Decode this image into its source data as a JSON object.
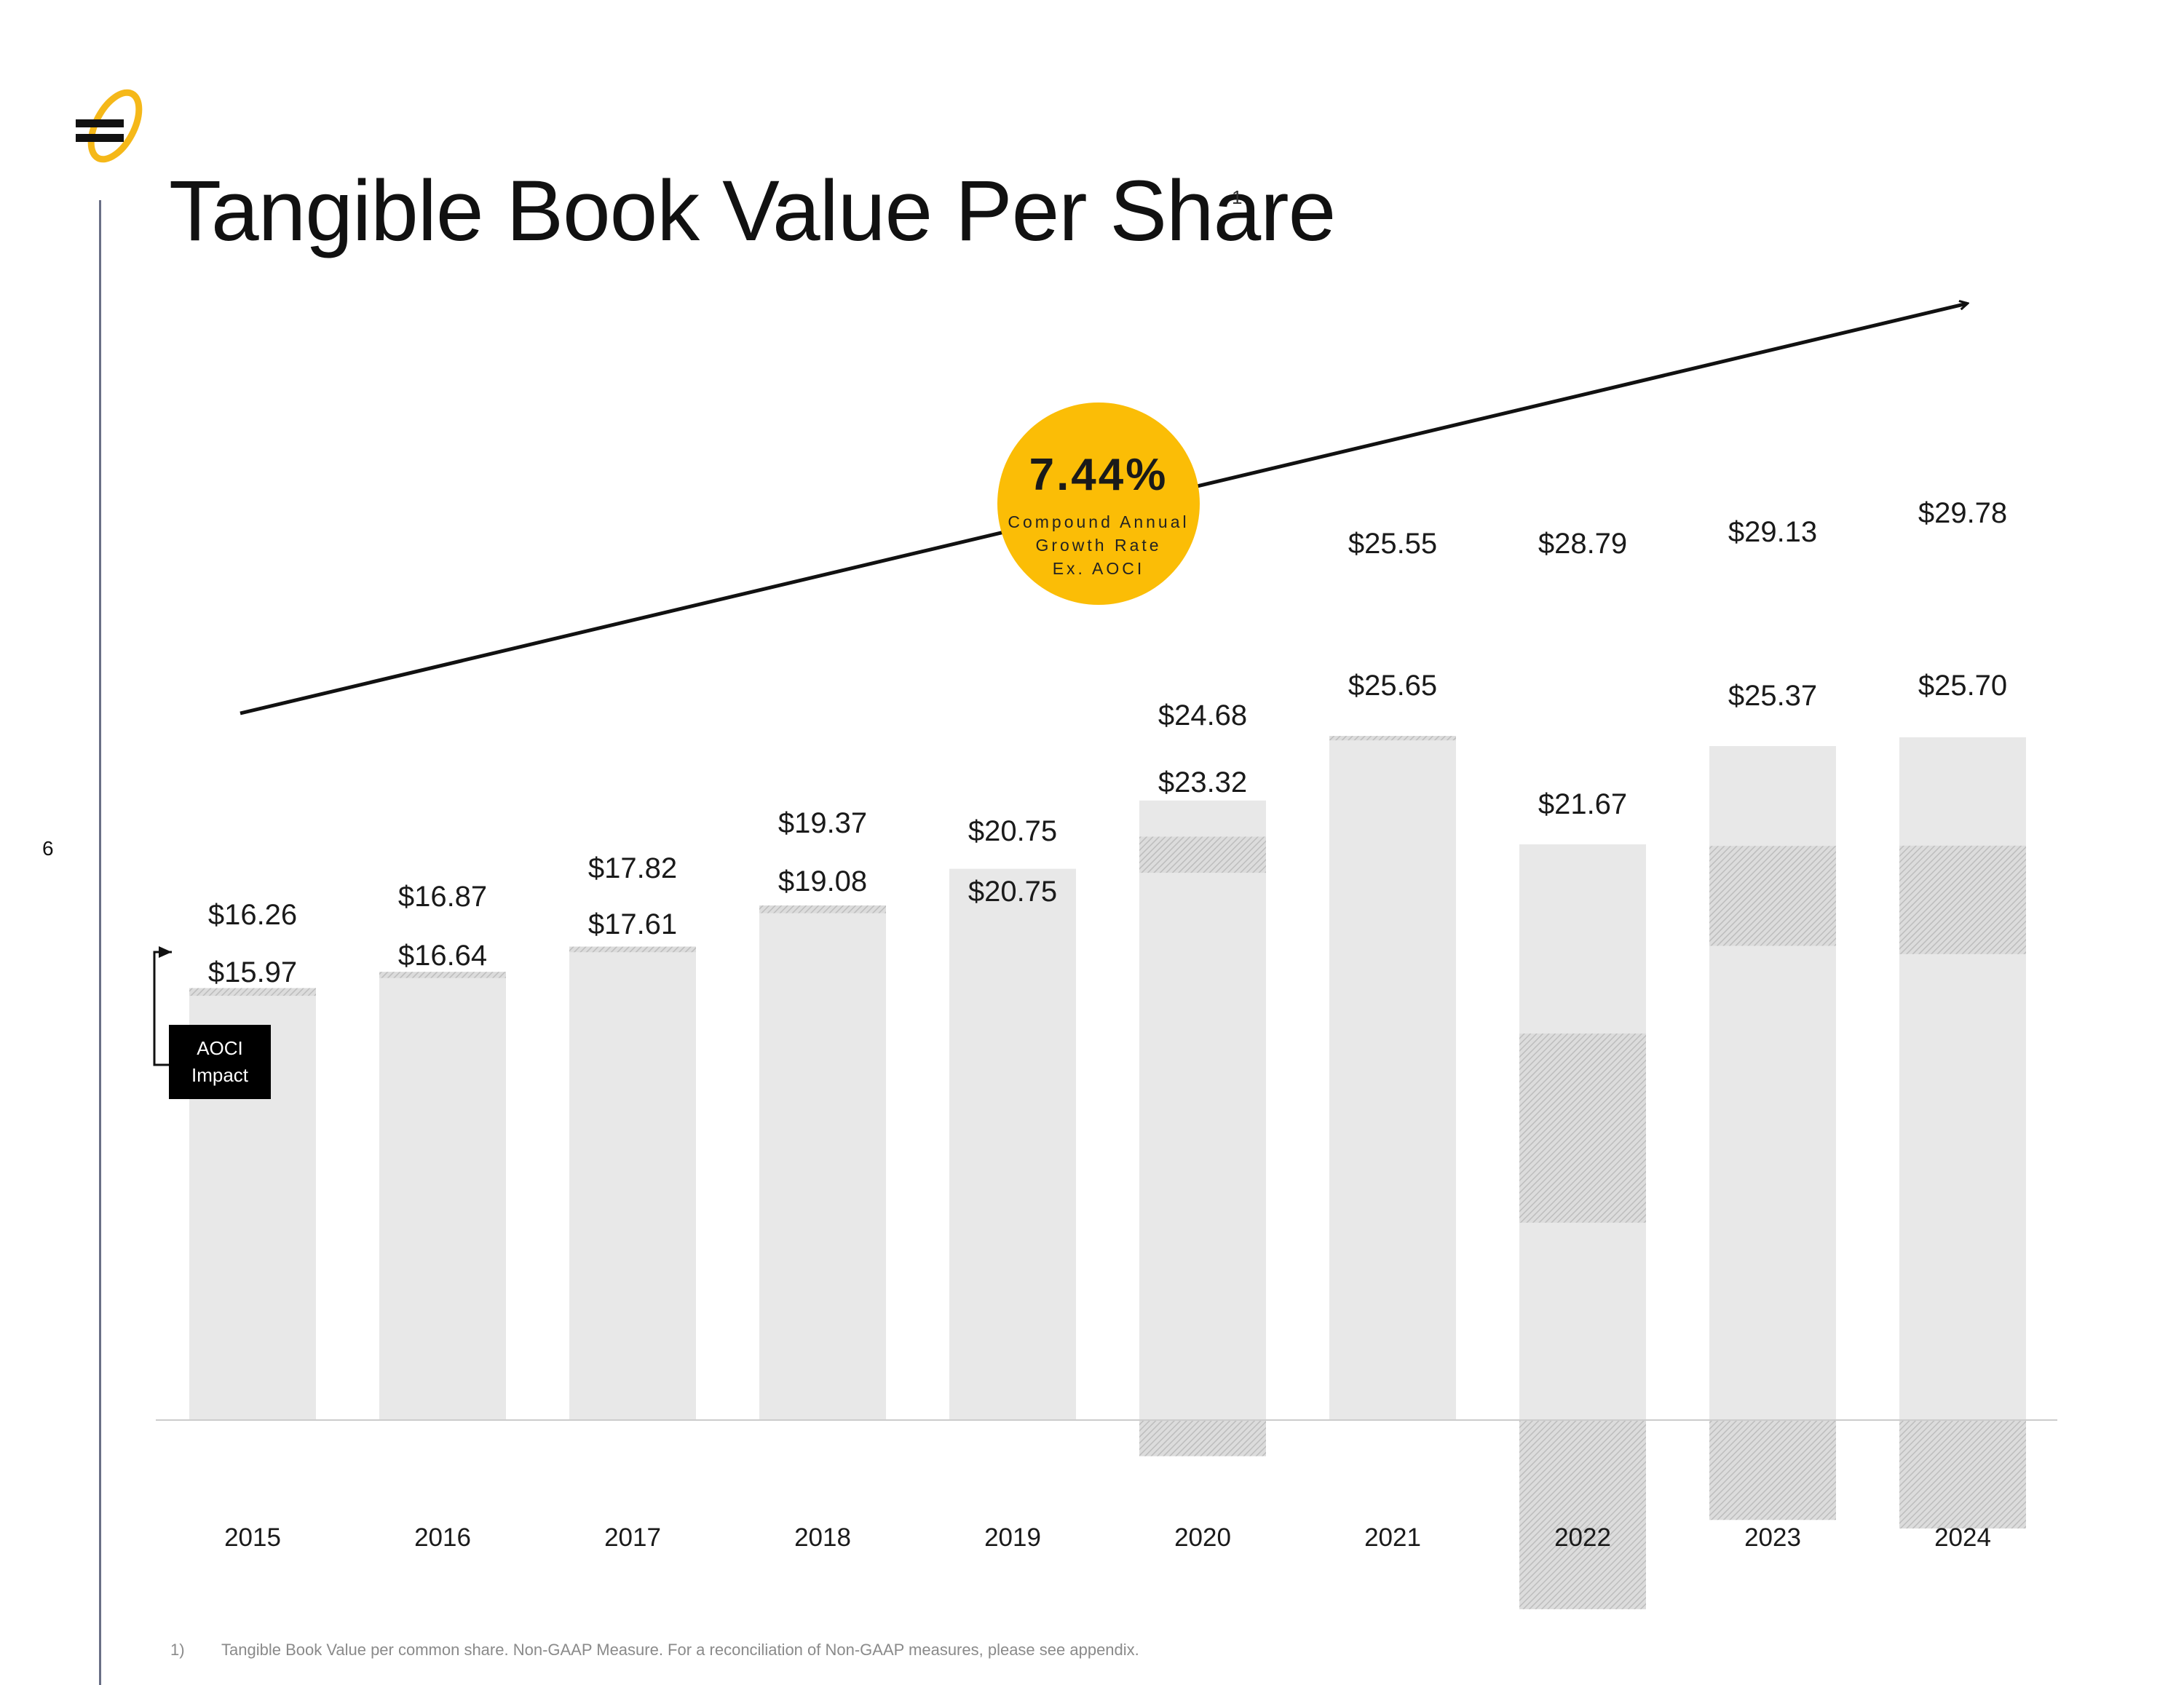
{
  "page": {
    "title": "Tangible Book Value Per Share",
    "title_footnote_marker": "1",
    "page_number": "6",
    "footnote_number": "1)",
    "footnote_text": "Tangible Book Value per common share. Non-GAAP Measure. For a reconciliation of Non-GAAP measures, please see appendix."
  },
  "badge": {
    "value": "7.44%",
    "label_lines": [
      "Compound Annual",
      "Growth Rate",
      "Ex. AOCI"
    ]
  },
  "aoci_label": {
    "lines": [
      "AOCI",
      "Impact"
    ]
  },
  "colors": {
    "bar": "#e8e8e8",
    "aoci_hatch": "#c9c9c9",
    "accent": "#fbbd06",
    "axis": "#cccccc",
    "left_rule": "#6a6f86"
  },
  "chart_data": {
    "type": "bar",
    "title": "Tangible Book Value Per Share",
    "categories": [
      "2015",
      "2016",
      "2017",
      "2018",
      "2019",
      "2020",
      "2021",
      "2022",
      "2023",
      "2024"
    ],
    "series": [
      {
        "name": "",
        "values": [
          16.26,
          16.87,
          17.82,
          19.37,
          20.75,
          24.68,
          25.55,
          28.79,
          29.13,
          29.78
        ]
      },
      {
        "name": "",
        "values": [
          15.97,
          16.64,
          17.61,
          19.08,
          20.75,
          23.32,
          25.65,
          21.67,
          25.37,
          25.7
        ]
      }
    ],
    "value_labels_upper": [
      "$16.26",
      "$16.87",
      "$17.82",
      "$19.37",
      "$20.75",
      "$24.68",
      "$25.55",
      "$28.79",
      "$29.13",
      "$29.78"
    ],
    "value_labels_lower": [
      "$15.97",
      "$16.64",
      "$17.61",
      "$19.08",
      "$20.75",
      "$23.32",
      "$25.65",
      "$21.67",
      "$25.37",
      "$25.70"
    ],
    "annotations": [
      "7.44% Compound Annual Growth Rate Ex. AOCI",
      "AOCI Impact"
    ],
    "xlabel": "",
    "ylabel": "",
    "grid": false,
    "legend": "none"
  }
}
